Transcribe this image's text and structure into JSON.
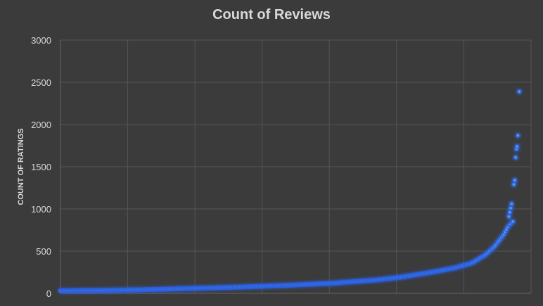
{
  "chart_data": {
    "type": "scatter",
    "title": "Count of Reviews",
    "xlabel": "",
    "ylabel": "COUNT OF RATINGS",
    "ylim": [
      0,
      3000
    ],
    "yticks": [
      "0",
      "500",
      "1000",
      "1500",
      "2000",
      "2500",
      "3000"
    ],
    "grid": true,
    "legend": "none",
    "marker_color": "#5b9bd5",
    "glow_color": "#2a5fe0",
    "background_color": "#3b3b3b",
    "curve_anchors": [
      [
        0,
        30
      ],
      [
        10,
        35
      ],
      [
        20,
        45
      ],
      [
        30,
        60
      ],
      [
        40,
        75
      ],
      [
        50,
        95
      ],
      [
        60,
        120
      ],
      [
        70,
        160
      ],
      [
        75,
        190
      ],
      [
        82,
        250
      ],
      [
        87,
        300
      ],
      [
        91,
        360
      ],
      [
        94,
        460
      ],
      [
        96,
        560
      ],
      [
        98,
        700
      ],
      [
        99,
        800
      ],
      [
        100,
        850
      ]
    ],
    "x_max": 100,
    "dense_count": 350,
    "outliers": [
      {
        "x": 99.1,
        "y": 910
      },
      {
        "x": 99.3,
        "y": 960
      },
      {
        "x": 99.5,
        "y": 1010
      },
      {
        "x": 99.7,
        "y": 1060
      },
      {
        "x": 100.2,
        "y": 1290
      },
      {
        "x": 100.4,
        "y": 1340
      },
      {
        "x": 100.6,
        "y": 1610
      },
      {
        "x": 100.8,
        "y": 1710
      },
      {
        "x": 100.9,
        "y": 1740
      },
      {
        "x": 101.1,
        "y": 1870
      },
      {
        "x": 101.4,
        "y": 2390
      }
    ]
  }
}
